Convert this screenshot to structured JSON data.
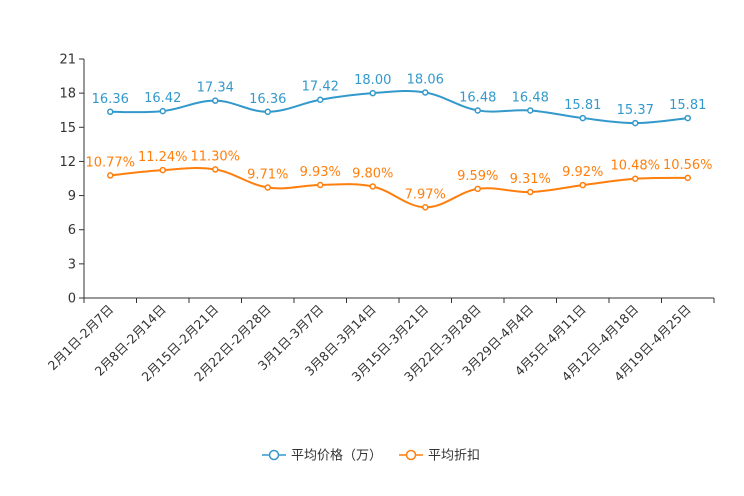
{
  "chart_data": {
    "type": "line",
    "title": "",
    "xlabel": "",
    "ylabel": "",
    "ylim": [
      0,
      21
    ],
    "yticks": [
      0,
      3,
      6,
      9,
      12,
      15,
      18,
      21
    ],
    "categories": [
      "2月1日-2月7日",
      "2月8日-2月14日",
      "2月15日-2月21日",
      "2月22日-2月28日",
      "3月1日-3月7日",
      "3月8日-3月14日",
      "3月15日-3月21日",
      "3月22日-3月28日",
      "3月29日-4月4日",
      "4月5日-4月11日",
      "4月12日-4月18日",
      "4月19日-4月25日"
    ],
    "series": [
      {
        "name": "平均价格（万）",
        "color": "#3399cc",
        "values": [
          16.36,
          16.42,
          17.34,
          16.36,
          17.42,
          18.0,
          18.06,
          16.48,
          16.48,
          15.81,
          15.37,
          15.81
        ],
        "labels": [
          "16.36",
          "16.42",
          "17.34",
          "16.36",
          "17.42",
          "18.00",
          "18.06",
          "16.48",
          "16.48",
          "15.81",
          "15.37",
          "15.81"
        ]
      },
      {
        "name": "平均折扣",
        "color": "#ff7f0e",
        "values": [
          10.77,
          11.24,
          11.3,
          9.71,
          9.93,
          9.8,
          7.97,
          9.59,
          9.31,
          9.92,
          10.48,
          10.56
        ],
        "labels": [
          "10.77%",
          "11.24%",
          "11.30%",
          "9.71%",
          "9.93%",
          "9.80%",
          "7.97%",
          "9.59%",
          "9.31%",
          "9.92%",
          "10.48%",
          "10.56%"
        ]
      }
    ],
    "legend_position": "bottom",
    "grid": false
  }
}
